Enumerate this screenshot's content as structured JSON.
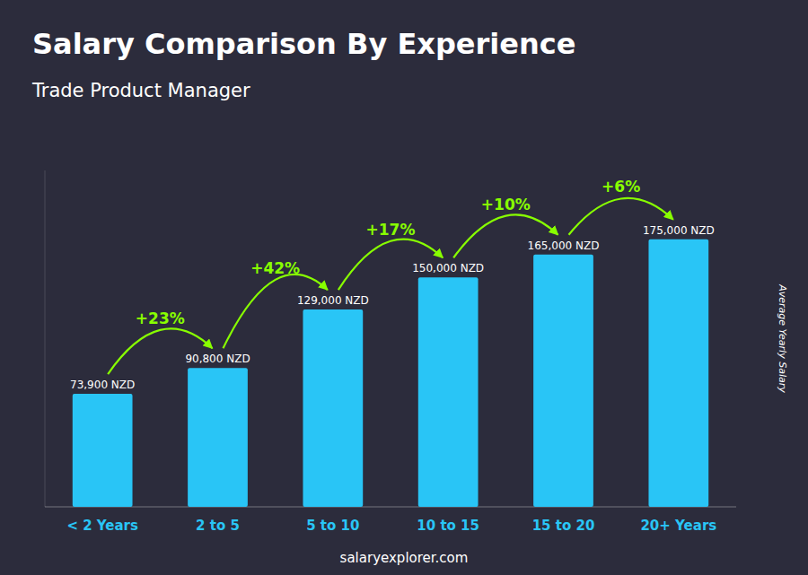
{
  "chart_data": {
    "type": "bar",
    "title": "Salary Comparison By Experience",
    "subtitle": "Trade Product Manager",
    "y_label": "Average Yearly Salary",
    "categories": [
      "< 2 Years",
      "2 to 5",
      "5 to 10",
      "10 to 15",
      "15 to 20",
      "20+ Years"
    ],
    "values": [
      73900,
      90800,
      129000,
      150000,
      165000,
      175000
    ],
    "value_labels": [
      "73,900 NZD",
      "90,800 NZD",
      "129,000 NZD",
      "150,000 NZD",
      "165,000 NZD",
      "175,000 NZD"
    ],
    "data_labels": true,
    "annotations": [
      "+23%",
      "+42%",
      "+17%",
      "+10%",
      "+6%"
    ],
    "footer": "salaryexplorer.com",
    "color": "#29c5f6",
    "ylim": [
      0,
      220000
    ],
    "tick_labels": "x",
    "grid": false
  }
}
